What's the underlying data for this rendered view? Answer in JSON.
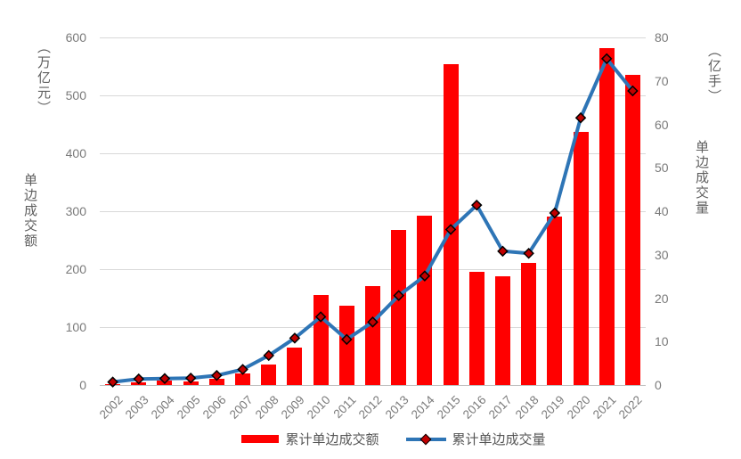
{
  "chart_data": {
    "type": "bar",
    "categories": [
      "2002",
      "2003",
      "2004",
      "2005",
      "2006",
      "2007",
      "2008",
      "2009",
      "2010",
      "2011",
      "2012",
      "2013",
      "2014",
      "2015",
      "2016",
      "2017",
      "2018",
      "2019",
      "2020",
      "2021",
      "2022"
    ],
    "series": [
      {
        "name": "累计单边成交额",
        "type": "bar",
        "axis": "left",
        "values": [
          2.0,
          5.4,
          7.3,
          6.7,
          10.5,
          20.5,
          36.0,
          65.2,
          154.9,
          137.5,
          171.1,
          267.5,
          292.0,
          554.2,
          195.6,
          187.9,
          210.8,
          290.6,
          437.5,
          581.2,
          534.9
        ]
      },
      {
        "name": "累计单边成交量",
        "type": "line",
        "axis": "right",
        "marker": "diamond",
        "values": [
          0.7,
          1.4,
          1.5,
          1.6,
          2.2,
          3.6,
          6.8,
          10.8,
          15.7,
          10.5,
          14.5,
          20.6,
          25.1,
          35.8,
          41.4,
          30.8,
          30.3,
          39.6,
          61.5,
          75.1,
          67.7
        ]
      }
    ],
    "left_axis": {
      "title": "单边成交额",
      "unit": "（万亿元）",
      "min": 0,
      "max": 600,
      "step": 100,
      "ticks": [
        0,
        100,
        200,
        300,
        400,
        500,
        600
      ]
    },
    "right_axis": {
      "title": "单边成交量",
      "unit": "（亿手）",
      "min": 0,
      "max": 80,
      "step": 10,
      "ticks": [
        0,
        10,
        20,
        30,
        40,
        50,
        60,
        70,
        80
      ]
    },
    "grid": true,
    "legend_position": "bottom"
  },
  "legend": {
    "items": [
      {
        "label": "累计单边成交额",
        "swatch": "bar"
      },
      {
        "label": "累计单边成交量",
        "swatch": "line-diamond"
      }
    ]
  },
  "colors": {
    "bar_red": "#FF0000",
    "line_blue": "#2E75B6",
    "marker_fill": "#C00000",
    "marker_stroke": "#000000",
    "gridline": "#D9D9D9",
    "axis_line": "#BFBFBF",
    "tick_label": "#7A7A7A",
    "axis_title": "#5F5F5F",
    "legend_text": "#565656",
    "background": "#FFFFFF"
  }
}
